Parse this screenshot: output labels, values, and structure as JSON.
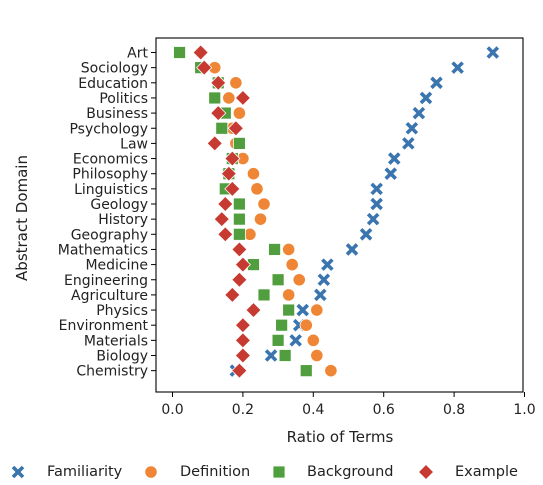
{
  "chart_data": {
    "type": "scatter",
    "title": "",
    "xlabel": "Ratio of Terms",
    "ylabel": "Abstract Domain",
    "xlim": [
      -0.02,
      1.0
    ],
    "xticks": [
      0.0,
      0.2,
      0.4,
      0.6,
      0.8,
      1.0
    ],
    "xtick_labels": [
      "0.0",
      "0.2",
      "0.4",
      "0.6",
      "0.8",
      "1.0"
    ],
    "grid": false,
    "legend_position": "bottom",
    "categories": [
      "Art",
      "Sociology",
      "Education",
      "Politics",
      "Business",
      "Psychology",
      "Law",
      "Economics",
      "Philosophy",
      "Linguistics",
      "Geology",
      "History",
      "Geography",
      "Mathematics",
      "Medicine",
      "Engineering",
      "Agriculture",
      "Physics",
      "Environment",
      "Materials",
      "Biology",
      "Chemistry"
    ],
    "series": [
      {
        "name": "Familiarity",
        "marker": "x",
        "color": "#3b75af",
        "values": [
          0.91,
          0.81,
          0.75,
          0.72,
          0.7,
          0.68,
          0.67,
          0.63,
          0.62,
          0.58,
          0.58,
          0.57,
          0.55,
          0.51,
          0.44,
          0.43,
          0.42,
          0.37,
          0.36,
          0.35,
          0.28,
          0.18
        ]
      },
      {
        "name": "Definition",
        "marker": "circle",
        "color": "#ef8636",
        "values": [
          0.08,
          0.12,
          0.18,
          0.16,
          0.19,
          0.17,
          0.18,
          0.2,
          0.23,
          0.24,
          0.26,
          0.25,
          0.22,
          0.33,
          0.34,
          0.36,
          0.33,
          0.41,
          0.38,
          0.4,
          0.41,
          0.45
        ]
      },
      {
        "name": "Background",
        "marker": "square",
        "color": "#519e3e",
        "values": [
          0.02,
          0.08,
          0.13,
          0.12,
          0.15,
          0.14,
          0.19,
          0.17,
          0.16,
          0.15,
          0.19,
          0.19,
          0.19,
          0.29,
          0.23,
          0.3,
          0.26,
          0.33,
          0.31,
          0.3,
          0.32,
          0.38
        ]
      },
      {
        "name": "Example",
        "marker": "diamond",
        "color": "#c63a32",
        "values": [
          0.08,
          0.09,
          0.13,
          0.2,
          0.13,
          0.18,
          0.12,
          0.17,
          0.16,
          0.17,
          0.15,
          0.14,
          0.15,
          0.19,
          0.2,
          0.19,
          0.17,
          0.23,
          0.2,
          0.2,
          0.2,
          0.19
        ]
      }
    ]
  }
}
